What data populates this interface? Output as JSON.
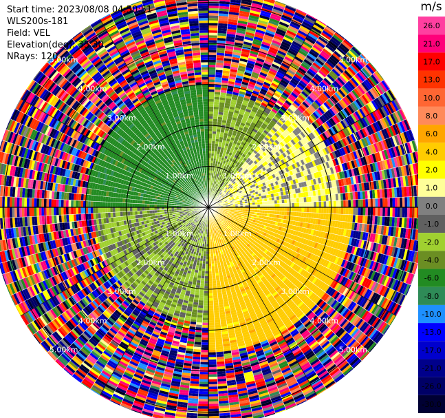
{
  "info": {
    "start_time": "Start time: 2023/08/08 04:50:51",
    "instrument": "WLS200s-181",
    "field": "Field: VEL",
    "elevation": "Elevation(deg): 35.30",
    "nrays": "NRays: 120"
  },
  "colorbar": {
    "unit": "m/s",
    "ticks": [
      "26.0",
      "21.0",
      "17.0",
      "13.0",
      "10.0",
      "8.0",
      "6.0",
      "4.0",
      "2.0",
      "1.0",
      "0.0",
      "-1.0",
      "-2.0",
      "-4.0",
      "-6.0",
      "-8.0",
      "-10.0",
      "-13.0",
      "-17.0",
      "-21.0",
      "-26.0",
      "-30.0"
    ],
    "colors": [
      "#ff3fa0",
      "#ff007a",
      "#ff0000",
      "#ff3300",
      "#ff6633",
      "#ff8a5a",
      "#ffa500",
      "#ffcc00",
      "#ffff00",
      "#ffff99",
      "#808080",
      "#606060",
      "#a0d030",
      "#6b8e23",
      "#228b22",
      "#2e8b57",
      "#1e90ff",
      "#0000ff",
      "#0000cd",
      "#00008b",
      "#000066",
      "#000033"
    ]
  },
  "chart_data": {
    "type": "heatmap",
    "title": "",
    "field": "VEL",
    "unit": "m/s",
    "nrays": 120,
    "elevation_deg": 35.3,
    "range_rings_km": [
      1.0,
      2.0,
      3.0,
      4.0,
      5.0
    ],
    "range_ring_labels": [
      "1.00km",
      "2.00km",
      "3.00km",
      "4.00km",
      "5.00km"
    ],
    "max_range_km": 5.3,
    "sectors": [
      {
        "azimuth_range_deg": [
          270,
          360
        ],
        "description_velocity_ms": -5.0,
        "max_clear_range_km": 3.0
      },
      {
        "azimuth_range_deg": [
          0,
          40
        ],
        "description_velocity_ms": -2.0,
        "max_clear_range_km": 2.8
      },
      {
        "azimuth_range_deg": [
          40,
          90
        ],
        "description_velocity_ms": 1.5,
        "max_clear_range_km": 3.2
      },
      {
        "azimuth_range_deg": [
          90,
          180
        ],
        "description_velocity_ms": 5.0,
        "max_clear_range_km": 3.5
      },
      {
        "azimuth_range_deg": [
          180,
          270
        ],
        "description_velocity_ms": -1.5,
        "max_clear_range_km": 2.8
      }
    ],
    "grid": true
  }
}
